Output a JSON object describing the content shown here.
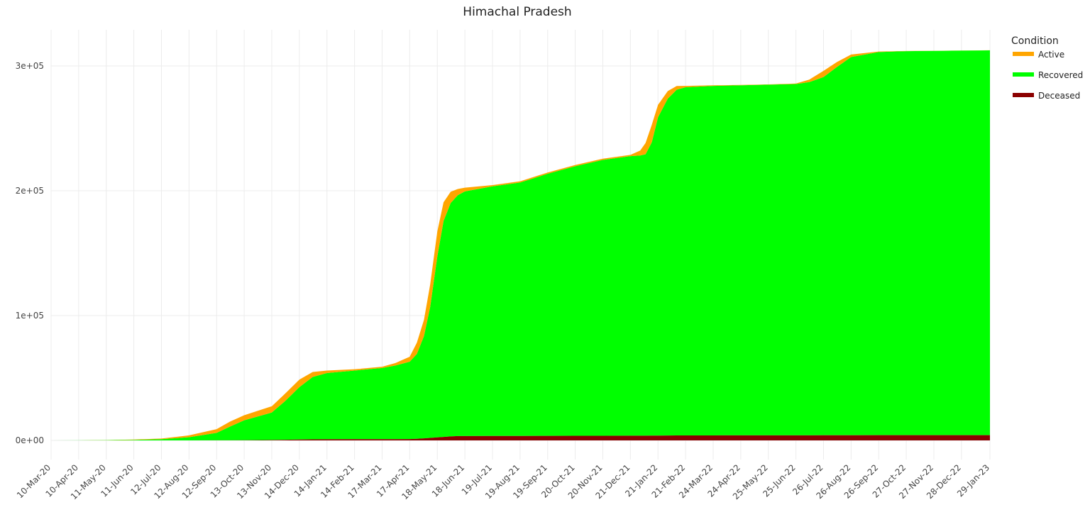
{
  "chart_data": {
    "type": "area",
    "stacked": true,
    "title": "Himachal Pradesh",
    "xlabel": "",
    "ylabel": "",
    "ylim": [
      -15000,
      325000
    ],
    "yticks": [
      0,
      100000,
      200000,
      300000
    ],
    "ytick_labels": [
      "0e+00",
      "1e+05",
      "2e+05",
      "3e+05"
    ],
    "xlim": [
      "2020-03-10",
      "2023-01-29"
    ],
    "xtick_dates": [
      "2020-03-10",
      "2020-04-10",
      "2020-05-11",
      "2020-06-11",
      "2020-07-12",
      "2020-08-12",
      "2020-09-12",
      "2020-10-13",
      "2020-11-13",
      "2020-12-14",
      "2021-01-14",
      "2021-02-14",
      "2021-03-17",
      "2021-04-17",
      "2021-05-18",
      "2021-06-18",
      "2021-07-19",
      "2021-08-19",
      "2021-09-19",
      "2021-10-20",
      "2021-11-20",
      "2021-12-21",
      "2022-01-21",
      "2022-02-21",
      "2022-03-24",
      "2022-04-24",
      "2022-05-25",
      "2022-06-25",
      "2022-07-26",
      "2022-08-26",
      "2022-09-26",
      "2022-10-27",
      "2022-11-27",
      "2022-12-28",
      "2023-01-29"
    ],
    "xtick_labels": [
      "10-Mar-20",
      "10-Apr-20",
      "11-May-20",
      "11-Jun-20",
      "12-Jul-20",
      "12-Aug-20",
      "12-Sep-20",
      "13-Oct-20",
      "13-Nov-20",
      "14-Dec-20",
      "14-Jan-21",
      "14-Feb-21",
      "17-Mar-21",
      "17-Apr-21",
      "18-May-21",
      "18-Jun-21",
      "19-Jul-21",
      "19-Aug-21",
      "19-Sep-21",
      "20-Oct-21",
      "20-Nov-21",
      "21-Dec-21",
      "21-Jan-22",
      "21-Feb-22",
      "24-Mar-22",
      "24-Apr-22",
      "25-May-22",
      "25-Jun-22",
      "26-Jul-22",
      "26-Aug-22",
      "26-Sep-22",
      "27-Oct-22",
      "27-Nov-22",
      "28-Dec-22",
      "29-Jan-23"
    ],
    "grid": true,
    "legend": {
      "title": "Condition",
      "position": "right"
    },
    "x": [
      "2020-03-10",
      "2020-04-10",
      "2020-05-11",
      "2020-06-11",
      "2020-07-12",
      "2020-08-12",
      "2020-09-12",
      "2020-09-27",
      "2020-10-13",
      "2020-11-13",
      "2020-11-28",
      "2020-12-14",
      "2020-12-29",
      "2021-01-14",
      "2021-02-14",
      "2021-03-17",
      "2021-04-01",
      "2021-04-17",
      "2021-04-25",
      "2021-05-03",
      "2021-05-10",
      "2021-05-18",
      "2021-05-25",
      "2021-06-02",
      "2021-06-10",
      "2021-06-18",
      "2021-07-19",
      "2021-08-19",
      "2021-09-19",
      "2021-10-20",
      "2021-11-20",
      "2021-12-21",
      "2022-01-01",
      "2022-01-07",
      "2022-01-14",
      "2022-01-21",
      "2022-02-01",
      "2022-02-11",
      "2022-02-21",
      "2022-03-24",
      "2022-04-24",
      "2022-05-25",
      "2022-06-25",
      "2022-07-10",
      "2022-07-26",
      "2022-08-10",
      "2022-08-26",
      "2022-09-26",
      "2022-10-27",
      "2022-11-27",
      "2022-12-28",
      "2023-01-29"
    ],
    "series": [
      {
        "name": "Deceased",
        "color": "#8b0000",
        "values": [
          0,
          0,
          5,
          10,
          15,
          20,
          50,
          80,
          150,
          350,
          500,
          700,
          850,
          950,
          1000,
          1010,
          1020,
          1050,
          1250,
          1600,
          2000,
          2400,
          2800,
          3200,
          3450,
          3500,
          3540,
          3580,
          3620,
          3660,
          3700,
          3740,
          3760,
          3780,
          3810,
          3850,
          3900,
          3950,
          3990,
          4010,
          4020,
          4030,
          4040,
          4060,
          4090,
          4120,
          4150,
          4170,
          4180,
          4190,
          4195,
          4200
        ]
      },
      {
        "name": "Recovered",
        "color": "#00ff00",
        "values": [
          0,
          50,
          200,
          400,
          1000,
          2500,
          6000,
          11000,
          16000,
          22000,
          31000,
          42000,
          50000,
          53000,
          55000,
          57000,
          59000,
          62000,
          68000,
          82000,
          105000,
          145000,
          173000,
          187000,
          193000,
          196000,
          200000,
          203000,
          210000,
          216000,
          221000,
          224000,
          224500,
          225500,
          235000,
          255000,
          270000,
          277000,
          279000,
          280000,
          280500,
          281000,
          281500,
          283000,
          287000,
          295000,
          303000,
          307000,
          307700,
          307900,
          308100,
          308300
        ]
      },
      {
        "name": "Active",
        "color": "#ffa500",
        "values": [
          0,
          50,
          100,
          300,
          500,
          1500,
          3000,
          4000,
          4000,
          5000,
          6000,
          6000,
          4000,
          2000,
          1000,
          1000,
          2000,
          4000,
          9000,
          13000,
          18000,
          20000,
          15000,
          9000,
          5000,
          3000,
          1000,
          1000,
          1000,
          1000,
          1000,
          1000,
          4000,
          9000,
          14000,
          10000,
          6000,
          3000,
          1000,
          500,
          300,
          200,
          400,
          2000,
          5000,
          4000,
          2000,
          400,
          100,
          50,
          50,
          50
        ]
      }
    ]
  }
}
